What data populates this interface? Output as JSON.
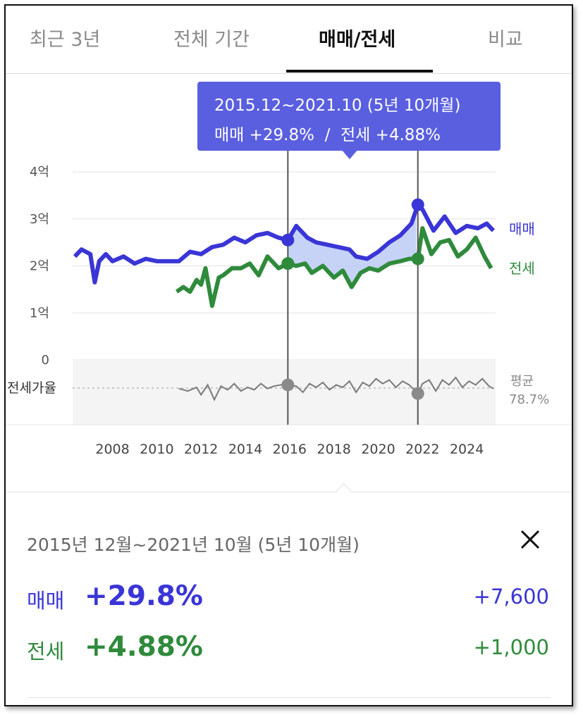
{
  "tabs": [
    {
      "label": "최근 3년",
      "active": false
    },
    {
      "label": "전체 기간",
      "active": false
    },
    {
      "label": "매매/전세",
      "active": true
    },
    {
      "label": "비교",
      "active": false
    }
  ],
  "tooltip": {
    "period": "2015.12~2021.10 (5년 10개월)",
    "summary": "매매 +29.8%  /  전세 +4.88%"
  },
  "legend": {
    "sale": "매매",
    "jeonse": "전세"
  },
  "ratio": {
    "label": "전세가율",
    "avg_label": "평균",
    "avg_value": "78.7%"
  },
  "panel": {
    "title": "2015년 12월~2021년 10월 (5년 10개월)",
    "rows": [
      {
        "label": "매매",
        "pct": "+29.8%",
        "abs": "+7,600"
      },
      {
        "label": "전세",
        "pct": "+4.88%",
        "abs": "+1,000"
      }
    ]
  },
  "colors": {
    "sale": "#3a35d6",
    "jeonse": "#2f8a3c",
    "ratio": "#7a7a7a",
    "tooltip": "#5a5fe0"
  },
  "chart_data": {
    "type": "line",
    "y_ticks": [
      "4억",
      "3억",
      "2억",
      "1억",
      "0"
    ],
    "ylim": [
      0,
      4
    ],
    "x_ticks": [
      "2008",
      "2010",
      "2012",
      "2014",
      "2016",
      "2018",
      "2020",
      "2022",
      "2024"
    ],
    "xlim": [
      2006.2,
      2025.3
    ],
    "selection": {
      "start": 2015.92,
      "end": 2021.79
    },
    "series": [
      {
        "name": "매매",
        "unit": "억",
        "x": [
          2006.3,
          2006.6,
          2007.0,
          2007.2,
          2007.4,
          2007.7,
          2008.0,
          2008.5,
          2009.0,
          2009.5,
          2010.0,
          2010.5,
          2011.0,
          2011.5,
          2012.0,
          2012.5,
          2013.0,
          2013.5,
          2014.0,
          2014.5,
          2015.0,
          2015.5,
          2015.92,
          2016.3,
          2016.8,
          2017.2,
          2017.7,
          2018.2,
          2018.7,
          2019.0,
          2019.5,
          2020.0,
          2020.5,
          2021.0,
          2021.5,
          2021.79,
          2022.0,
          2022.5,
          2023.0,
          2023.5,
          2024.0,
          2024.5,
          2024.9,
          2025.2
        ],
        "y": [
          2.2,
          2.35,
          2.25,
          1.65,
          2.1,
          2.25,
          2.1,
          2.2,
          2.05,
          2.15,
          2.1,
          2.1,
          2.1,
          2.3,
          2.25,
          2.4,
          2.45,
          2.6,
          2.5,
          2.65,
          2.7,
          2.6,
          2.55,
          2.85,
          2.6,
          2.5,
          2.45,
          2.4,
          2.35,
          2.2,
          2.15,
          2.3,
          2.5,
          2.65,
          2.9,
          3.3,
          3.2,
          2.75,
          3.05,
          2.7,
          2.85,
          2.8,
          2.9,
          2.75
        ]
      },
      {
        "name": "전세",
        "unit": "억",
        "x": [
          2010.9,
          2011.2,
          2011.5,
          2011.8,
          2012.0,
          2012.2,
          2012.5,
          2012.8,
          2013.0,
          2013.4,
          2013.8,
          2014.2,
          2014.6,
          2015.0,
          2015.5,
          2015.92,
          2016.3,
          2016.7,
          2017.0,
          2017.5,
          2018.0,
          2018.4,
          2018.8,
          2019.2,
          2019.6,
          2020.0,
          2020.5,
          2021.0,
          2021.4,
          2021.79,
          2022.0,
          2022.4,
          2022.8,
          2023.2,
          2023.6,
          2024.0,
          2024.4,
          2024.8,
          2025.1
        ],
        "y": [
          1.45,
          1.55,
          1.45,
          1.7,
          1.6,
          1.95,
          1.15,
          1.75,
          1.8,
          1.95,
          1.95,
          2.05,
          1.8,
          2.2,
          1.95,
          2.05,
          2.0,
          2.05,
          1.85,
          2.0,
          1.75,
          1.9,
          1.55,
          1.85,
          1.95,
          1.9,
          2.05,
          2.1,
          2.15,
          2.15,
          2.8,
          2.25,
          2.5,
          2.55,
          2.2,
          2.35,
          2.6,
          2.2,
          1.95
        ]
      },
      {
        "name": "전세가율",
        "x": [
          2011.0,
          2011.4,
          2011.8,
          2012.0,
          2012.3,
          2012.6,
          2012.9,
          2013.2,
          2013.5,
          2013.8,
          2014.1,
          2014.4,
          2014.7,
          2015.0,
          2015.3,
          2015.6,
          2015.92,
          2016.3,
          2016.6,
          2016.9,
          2017.2,
          2017.5,
          2017.8,
          2018.1,
          2018.4,
          2018.7,
          2019.0,
          2019.3,
          2019.6,
          2019.9,
          2020.2,
          2020.5,
          2020.8,
          2021.1,
          2021.4,
          2021.79,
          2022.0,
          2022.3,
          2022.6,
          2022.9,
          2023.2,
          2023.5,
          2023.8,
          2024.1,
          2024.4,
          2024.7,
          2025.0,
          2025.2
        ],
        "y": [
          78.5,
          77.5,
          79.0,
          76.0,
          80.0,
          74.0,
          79.5,
          78.0,
          80.5,
          77.5,
          79.0,
          78.0,
          80.5,
          78.5,
          79.5,
          80.0,
          80.0,
          79.5,
          77.0,
          80.5,
          79.0,
          81.0,
          78.0,
          80.0,
          79.0,
          81.5,
          77.0,
          81.0,
          79.5,
          82.5,
          80.5,
          82.0,
          79.0,
          81.5,
          80.0,
          76.5,
          80.5,
          82.0,
          77.5,
          82.0,
          80.0,
          83.0,
          79.0,
          81.5,
          80.0,
          82.5,
          79.5,
          78.5
        ]
      }
    ]
  }
}
